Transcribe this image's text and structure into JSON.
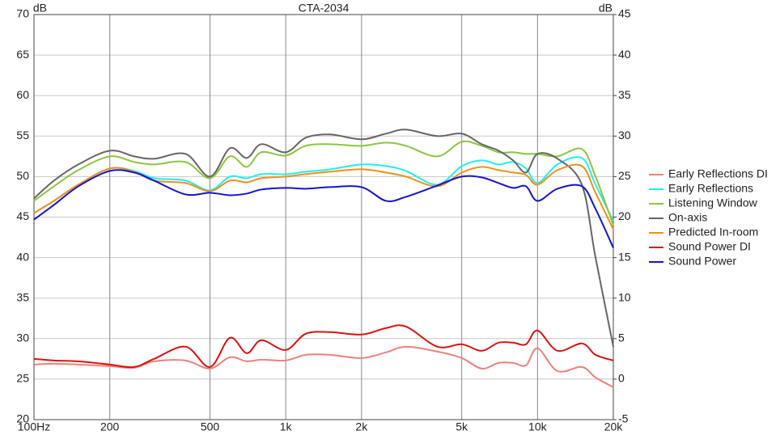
{
  "chart_data": {
    "type": "line",
    "title": "CTA-2034",
    "ylabel": "dB",
    "y2label": "dB",
    "xscale": "log",
    "grid": true,
    "legend": "right",
    "xlim": [
      100,
      20000
    ],
    "xticks": [
      {
        "value": 100,
        "label": "100Hz"
      },
      200,
      500,
      {
        "value": 1000,
        "label": "1k"
      },
      {
        "value": 2000,
        "label": "2k"
      },
      {
        "value": 5000,
        "label": "5k"
      },
      {
        "value": 10000,
        "label": "10k"
      },
      {
        "value": 20000,
        "label": "20k"
      }
    ],
    "ylim": [
      20,
      70
    ],
    "yticks": [
      20,
      25,
      30,
      35,
      40,
      45,
      50,
      55,
      60,
      65,
      70
    ],
    "y2lim": [
      -5,
      45
    ],
    "y2ticks": [
      -5,
      0,
      5,
      10,
      15,
      20,
      25,
      30,
      35,
      40,
      45
    ],
    "x": [
      100,
      120,
      150,
      200,
      250,
      300,
      400,
      500,
      600,
      700,
      800,
      1000,
      1200,
      1500,
      2000,
      2500,
      3000,
      4000,
      5000,
      6000,
      7000,
      8000,
      9000,
      10000,
      12000,
      15000,
      17000,
      20000
    ],
    "series": [
      {
        "name": "Early Reflections DI",
        "color": "#f08078",
        "axis": "y2",
        "values": [
          1.8,
          1.9,
          1.8,
          1.6,
          1.4,
          2.2,
          2.3,
          1.3,
          2.7,
          2.2,
          2.4,
          2.3,
          3,
          3,
          2.6,
          3.3,
          4,
          3.4,
          2.6,
          1.3,
          2,
          2,
          1.7,
          3.8,
          1,
          1.5,
          0.2,
          -1
        ]
      },
      {
        "name": "Early Reflections",
        "color": "#22eef0",
        "values": [
          45.5,
          47,
          49,
          51,
          50.7,
          49.8,
          49.5,
          48.3,
          50,
          49.8,
          50.3,
          50.3,
          50.6,
          50.9,
          51.5,
          51.3,
          50.7,
          49,
          51.3,
          52,
          51.5,
          51.8,
          51,
          49.2,
          51.5,
          52.3,
          49,
          44.5
        ]
      },
      {
        "name": "Listening Window",
        "color": "#8cc63f",
        "values": [
          47,
          48.8,
          50.8,
          52.5,
          51.8,
          51.5,
          51.8,
          49.8,
          52.5,
          51.2,
          53,
          52.6,
          53.8,
          54,
          53.8,
          54.2,
          53.8,
          52.5,
          54.3,
          53.8,
          53,
          53,
          52.8,
          52.8,
          52.5,
          53.4,
          50,
          44
        ]
      },
      {
        "name": "On-axis",
        "color": "#666666",
        "values": [
          47.3,
          49.5,
          51.5,
          53.2,
          52.5,
          52.2,
          52.8,
          50,
          53.5,
          52.3,
          54,
          53,
          54.8,
          55.2,
          54.6,
          55.3,
          55.8,
          55,
          55.3,
          54,
          53.2,
          52,
          50.5,
          52.8,
          52.2,
          49,
          40,
          29
        ]
      },
      {
        "name": "Predicted In-room",
        "color": "#f0901a",
        "values": [
          45.5,
          47,
          49,
          51,
          50.6,
          49.5,
          49.2,
          48.2,
          49.5,
          49.3,
          49.8,
          50,
          50.3,
          50.6,
          50.9,
          50.5,
          50,
          48.8,
          50.5,
          51.2,
          50.8,
          50.5,
          50.2,
          49,
          50.8,
          51.3,
          48,
          43.5
        ]
      },
      {
        "name": "Sound Power DI",
        "color": "#e01010",
        "axis": "y2",
        "values": [
          2.5,
          2.3,
          2.2,
          1.8,
          1.5,
          2.5,
          4,
          1.5,
          5.1,
          3.2,
          4.8,
          3.6,
          5.6,
          5.8,
          5.5,
          6.3,
          6.5,
          4,
          4.3,
          3.5,
          4.5,
          4.5,
          4.3,
          6,
          3.5,
          4.4,
          3,
          2.3
        ]
      },
      {
        "name": "Sound Power",
        "color": "#1414d2",
        "values": [
          44.7,
          46.5,
          48.8,
          50.7,
          50.5,
          49.5,
          47.8,
          48,
          47.7,
          47.9,
          48.4,
          48.6,
          48.5,
          48.7,
          48.7,
          47,
          47.5,
          48.9,
          50,
          49.9,
          49.2,
          48.6,
          48.8,
          47,
          48.5,
          48.8,
          46,
          41.2
        ]
      }
    ]
  }
}
